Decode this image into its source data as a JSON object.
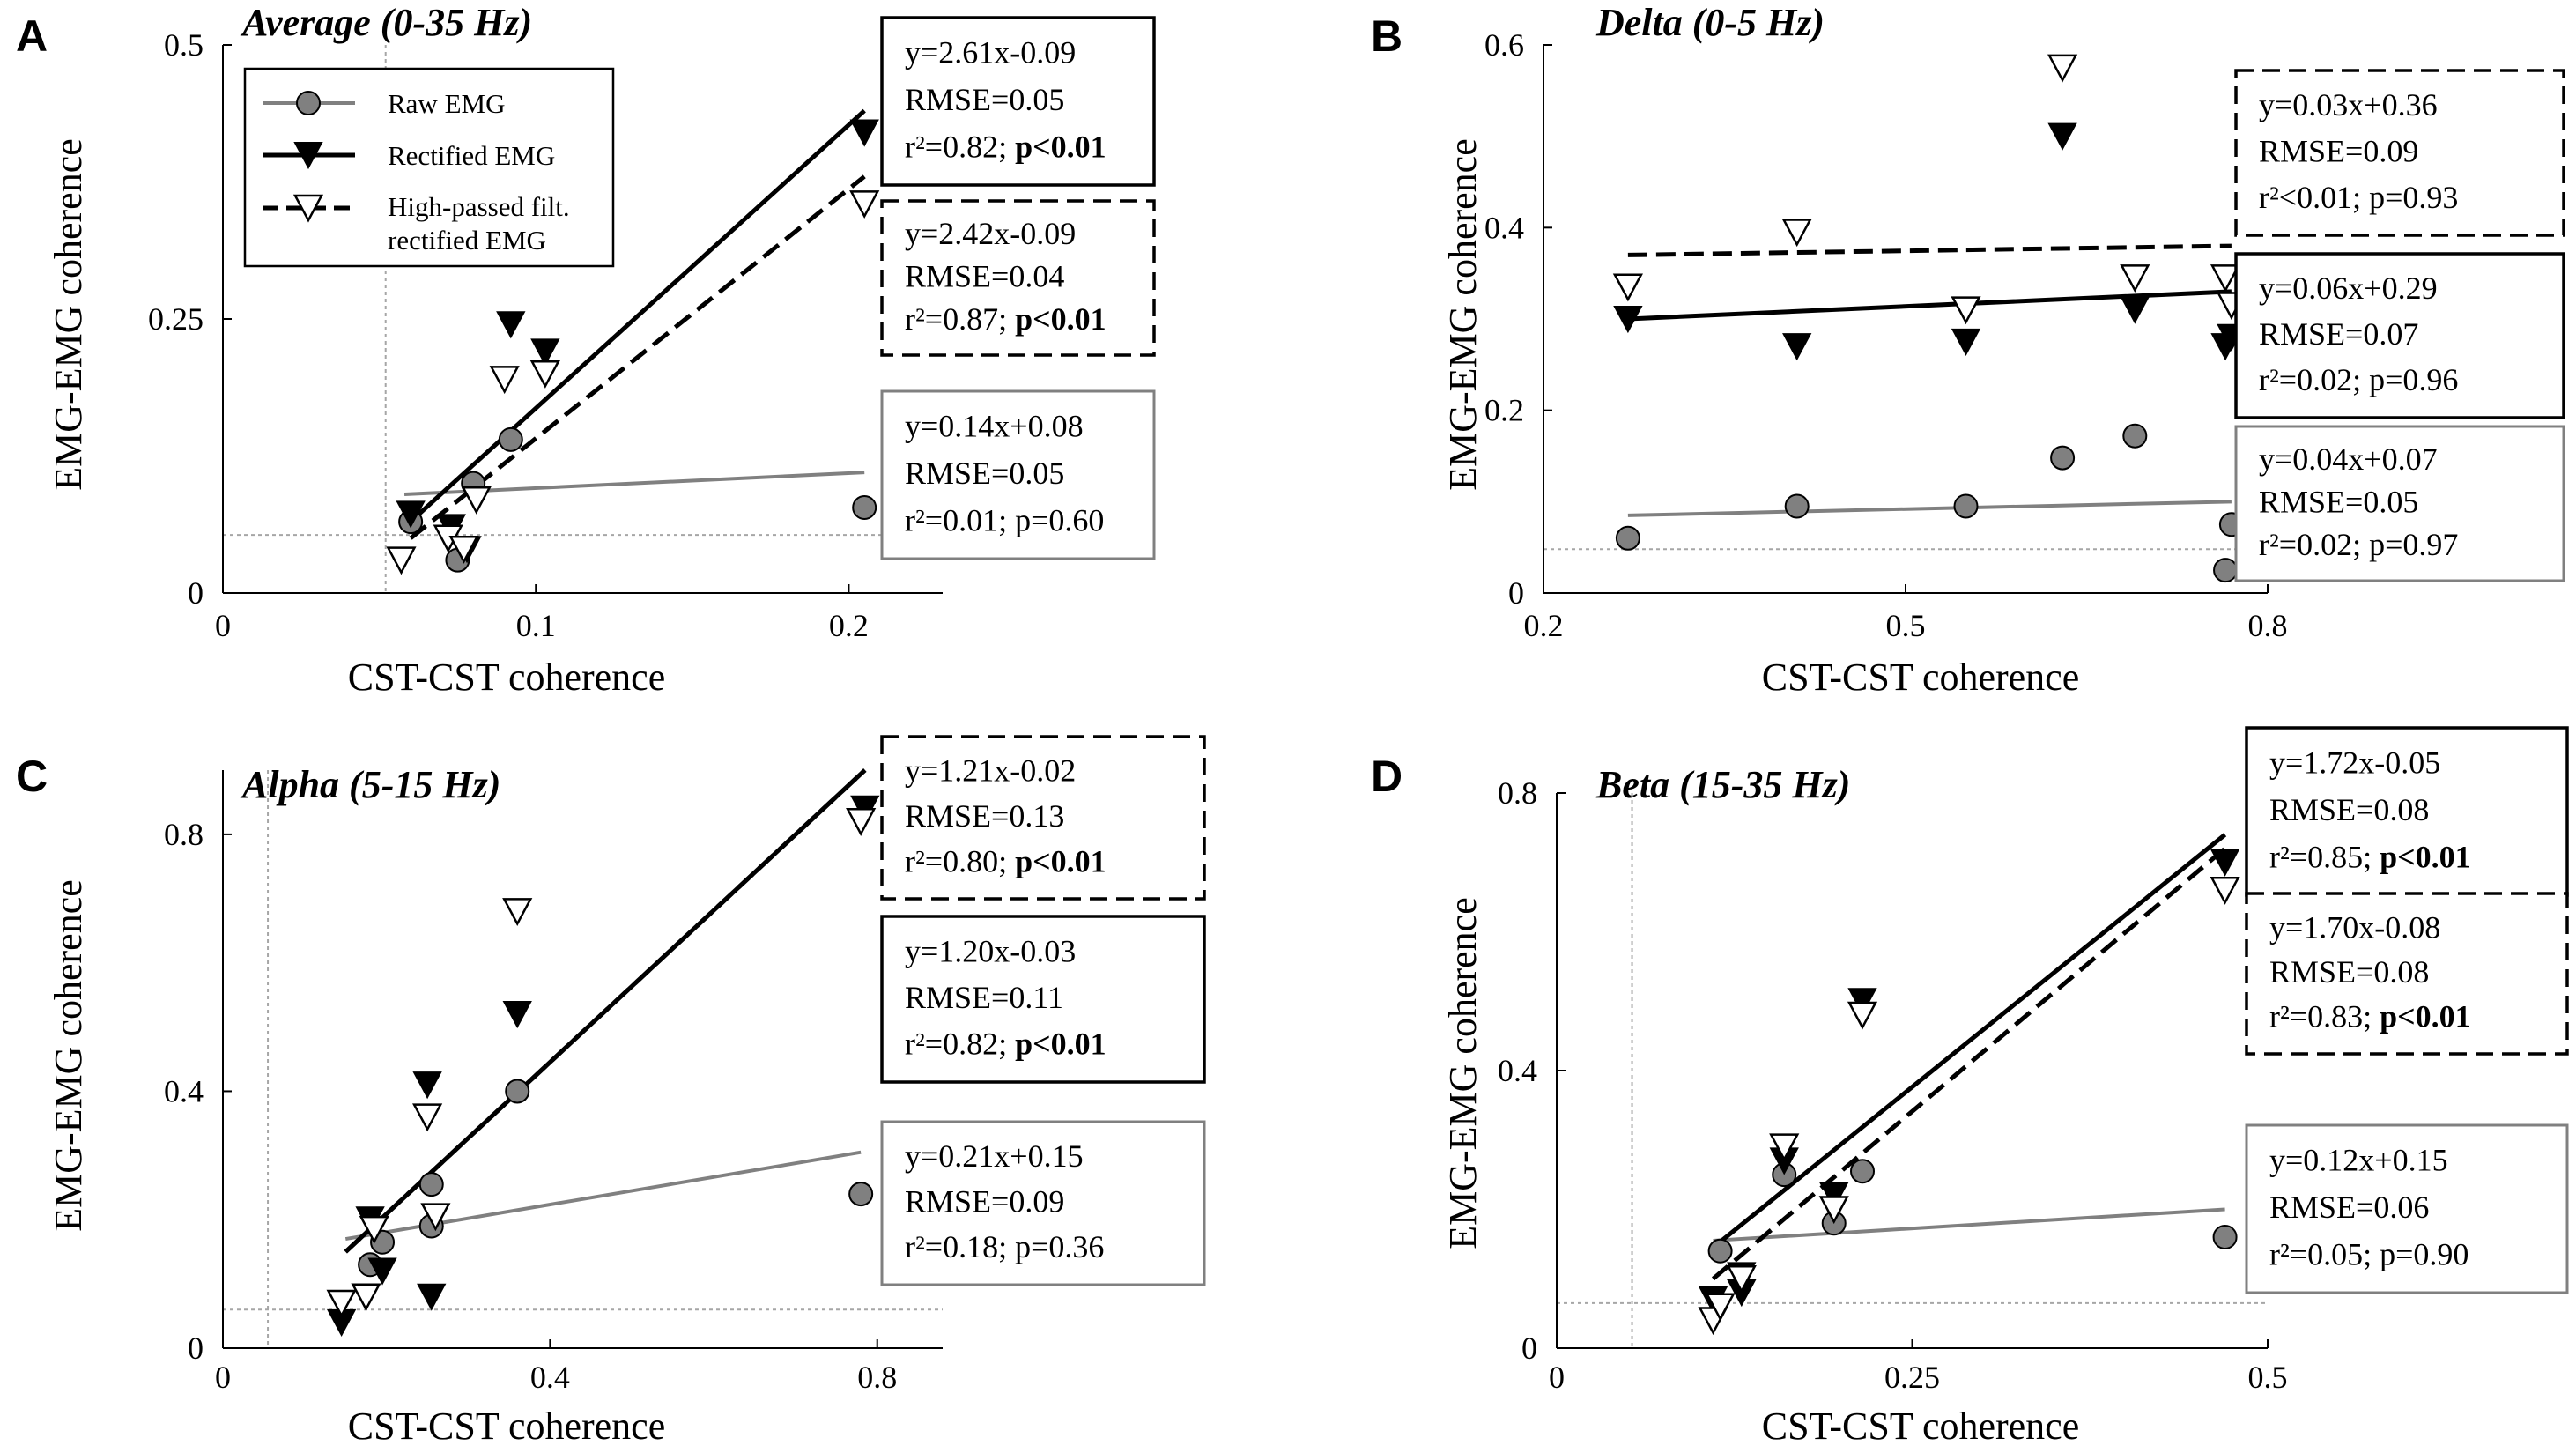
{
  "legend": {
    "raw": "Raw EMG",
    "rect": "Rectified EMG",
    "hp_line1": "High-passed filt.",
    "hp_line2": "rectified EMG"
  },
  "colors": {
    "raw": "#808080",
    "rect": "#000000",
    "hp": "#000000",
    "grid": "#a6a6a6"
  },
  "chart_data": [
    {
      "type": "scatter",
      "panel": "A",
      "title": "Average (0-35 Hz)",
      "xlabel": "CST-CST coherence",
      "ylabel": "EMG-EMG coherence",
      "xlim": [
        0,
        0.23
      ],
      "ylim": [
        0,
        0.5
      ],
      "xticks": [
        {
          "v": 0,
          "label": "0"
        },
        {
          "v": 0.1,
          "label": "0.1"
        },
        {
          "v": 0.2,
          "label": "0.2"
        }
      ],
      "yticks": [
        {
          "v": 0,
          "label": "0"
        },
        {
          "v": 0.25,
          "label": "0.25"
        },
        {
          "v": 0.5,
          "label": "0.5"
        }
      ],
      "chance": {
        "x": 0.052,
        "y": 0.053
      },
      "series": [
        {
          "key": "raw",
          "name": "Raw EMG",
          "marker": "circle",
          "points": [
            [
              0.06,
              0.065
            ],
            [
              0.075,
              0.03
            ],
            [
              0.08,
              0.1
            ],
            [
              0.092,
              0.14
            ],
            [
              0.205,
              0.078
            ]
          ],
          "fit": {
            "x": [
              0.058,
              0.205
            ],
            "y": [
              0.09,
              0.11
            ]
          }
        },
        {
          "key": "rect",
          "name": "Rectified EMG",
          "marker": "tri-down-filled",
          "points": [
            [
              0.06,
              0.072
            ],
            [
              0.073,
              0.06
            ],
            [
              0.078,
              0.04
            ],
            [
              0.092,
              0.245
            ],
            [
              0.103,
              0.22
            ],
            [
              0.205,
              0.42
            ]
          ],
          "fit": {
            "x": [
              0.058,
              0.205
            ],
            "y": [
              0.06,
              0.44
            ]
          }
        },
        {
          "key": "hp",
          "name": "High-passed filt. rectified EMG",
          "marker": "tri-down-open",
          "points": [
            [
              0.057,
              0.03
            ],
            [
              0.072,
              0.05
            ],
            [
              0.077,
              0.04
            ],
            [
              0.081,
              0.085
            ],
            [
              0.09,
              0.195
            ],
            [
              0.103,
              0.2
            ],
            [
              0.205,
              0.355
            ]
          ],
          "fit": {
            "x": [
              0.06,
              0.205
            ],
            "y": [
              0.05,
              0.38
            ]
          }
        }
      ],
      "boxes": [
        {
          "series": "rect",
          "style": "solid",
          "lines": [
            "y=2.61x-0.09",
            "RMSE=0.05",
            "r²=0.82; ",
            "p<0.01"
          ]
        },
        {
          "series": "hp",
          "style": "dashed",
          "lines": [
            "y=2.42x-0.09",
            "RMSE=0.04",
            "r²=0.87; ",
            "p<0.01"
          ]
        },
        {
          "series": "raw",
          "style": "gray",
          "lines": [
            "y=0.14x+0.08",
            "RMSE=0.05",
            "r²=0.01; p=0.60",
            ""
          ]
        }
      ]
    },
    {
      "type": "scatter",
      "panel": "B",
      "title": "Delta (0-5 Hz)",
      "xlabel": "CST-CST coherence",
      "ylabel": "EMG-EMG coherence",
      "xlim": [
        0.2,
        0.8
      ],
      "ylim": [
        0,
        0.6
      ],
      "xticks": [
        {
          "v": 0.2,
          "label": "0.2"
        },
        {
          "v": 0.5,
          "label": "0.5"
        },
        {
          "v": 0.8,
          "label": "0.8"
        }
      ],
      "yticks": [
        {
          "v": 0,
          "label": "0"
        },
        {
          "v": 0.2,
          "label": "0.2"
        },
        {
          "v": 0.4,
          "label": "0.4"
        },
        {
          "v": 0.6,
          "label": "0.6"
        }
      ],
      "chance": {
        "x": null,
        "y": 0.048
      },
      "series": [
        {
          "key": "raw",
          "name": "Raw EMG",
          "marker": "circle",
          "points": [
            [
              0.27,
              0.06
            ],
            [
              0.41,
              0.095
            ],
            [
              0.55,
              0.095
            ],
            [
              0.63,
              0.148
            ],
            [
              0.69,
              0.172
            ],
            [
              0.765,
              0.025
            ],
            [
              0.77,
              0.075
            ]
          ],
          "fit": {
            "x": [
              0.27,
              0.77
            ],
            "y": [
              0.085,
              0.1
            ]
          }
        },
        {
          "key": "rect",
          "name": "Rectified EMG",
          "marker": "tri-down-filled",
          "points": [
            [
              0.27,
              0.3
            ],
            [
              0.41,
              0.27
            ],
            [
              0.55,
              0.275
            ],
            [
              0.63,
              0.5
            ],
            [
              0.69,
              0.31
            ],
            [
              0.765,
              0.27
            ],
            [
              0.77,
              0.28
            ]
          ],
          "fit": {
            "x": [
              0.27,
              0.77
            ],
            "y": [
              0.3,
              0.33
            ]
          }
        },
        {
          "key": "hp",
          "name": "High-passed filt. rectified EMG",
          "marker": "tri-down-open",
          "points": [
            [
              0.27,
              0.335
            ],
            [
              0.41,
              0.395
            ],
            [
              0.55,
              0.31
            ],
            [
              0.63,
              0.575
            ],
            [
              0.69,
              0.345
            ],
            [
              0.765,
              0.345
            ],
            [
              0.77,
              0.315
            ]
          ],
          "fit": {
            "x": [
              0.27,
              0.77
            ],
            "y": [
              0.37,
              0.38
            ]
          }
        }
      ],
      "boxes": [
        {
          "series": "hp",
          "style": "dashed",
          "lines": [
            "y=0.03x+0.36",
            "RMSE=0.09",
            "r²<0.01; p=0.93",
            ""
          ]
        },
        {
          "series": "rect",
          "style": "solid",
          "lines": [
            "y=0.06x+0.29",
            "RMSE=0.07",
            "r²=0.02; p=0.96",
            ""
          ]
        },
        {
          "series": "raw",
          "style": "gray",
          "lines": [
            "y=0.04x+0.07",
            "RMSE=0.05",
            "r²=0.02; p=0.97",
            ""
          ]
        }
      ]
    },
    {
      "type": "scatter",
      "panel": "C",
      "title": "Alpha (5-15 Hz)",
      "xlabel": "CST-CST coherence",
      "ylabel": "EMG-EMG coherence",
      "xlim": [
        0,
        0.88
      ],
      "ylim": [
        0,
        0.9
      ],
      "xticks": [
        {
          "v": 0,
          "label": "0"
        },
        {
          "v": 0.4,
          "label": "0.4"
        },
        {
          "v": 0.8,
          "label": "0.8"
        }
      ],
      "yticks": [
        {
          "v": 0,
          "label": "0"
        },
        {
          "v": 0.4,
          "label": "0.4"
        },
        {
          "v": 0.8,
          "label": "0.8"
        }
      ],
      "chance": {
        "x": 0.055,
        "y": 0.06
      },
      "series": [
        {
          "key": "raw",
          "name": "Raw EMG",
          "marker": "circle",
          "points": [
            [
              0.18,
              0.13
            ],
            [
              0.195,
              0.165
            ],
            [
              0.255,
              0.255
            ],
            [
              0.255,
              0.19
            ],
            [
              0.36,
              0.4
            ],
            [
              0.78,
              0.24
            ]
          ],
          "fit": {
            "x": [
              0.15,
              0.78
            ],
            "y": [
              0.17,
              0.305
            ]
          }
        },
        {
          "key": "rect",
          "name": "Rectified EMG",
          "marker": "tri-down-filled",
          "points": [
            [
              0.145,
              0.04
            ],
            [
              0.18,
              0.2
            ],
            [
              0.195,
              0.12
            ],
            [
              0.25,
              0.41
            ],
            [
              0.255,
              0.08
            ],
            [
              0.36,
              0.52
            ],
            [
              0.785,
              0.84
            ]
          ],
          "fit": {
            "x": [
              0.15,
              0.785
            ],
            "y": [
              0.15,
              0.9
            ]
          }
        },
        {
          "key": "hp",
          "name": "High-passed filt. rectified EMG",
          "marker": "tri-down-open",
          "points": [
            [
              0.145,
              0.07
            ],
            [
              0.175,
              0.08
            ],
            [
              0.185,
              0.185
            ],
            [
              0.25,
              0.36
            ],
            [
              0.26,
              0.205
            ],
            [
              0.36,
              0.68
            ],
            [
              0.78,
              0.82
            ]
          ],
          "fit": {
            "x": [
              0.15,
              0.785
            ],
            "y": [
              0.15,
              0.9
            ]
          }
        }
      ],
      "boxes": [
        {
          "series": "hp",
          "style": "dashed",
          "lines": [
            "y=1.21x-0.02",
            "RMSE=0.13",
            "r²=0.80; ",
            "p<0.01"
          ]
        },
        {
          "series": "rect",
          "style": "solid",
          "lines": [
            "y=1.20x-0.03",
            "RMSE=0.11",
            "r²=0.82; ",
            "p<0.01"
          ]
        },
        {
          "series": "raw",
          "style": "gray",
          "lines": [
            "y=0.21x+0.15",
            "RMSE=0.09",
            "r²=0.18; p=0.36",
            ""
          ]
        }
      ]
    },
    {
      "type": "scatter",
      "panel": "D",
      "title": "Beta (15-35 Hz)",
      "xlabel": "CST-CST coherence",
      "ylabel": "EMG-EMG coherence",
      "xlim": [
        0,
        0.5
      ],
      "ylim": [
        0,
        0.8
      ],
      "xticks": [
        {
          "v": 0,
          "label": "0"
        },
        {
          "v": 0.25,
          "label": "0.25"
        },
        {
          "v": 0.5,
          "label": "0.5"
        }
      ],
      "yticks": [
        {
          "v": 0,
          "label": "0"
        },
        {
          "v": 0.4,
          "label": "0.4"
        },
        {
          "v": 0.8,
          "label": "0.8"
        }
      ],
      "chance": {
        "x": 0.053,
        "y": 0.065
      },
      "series": [
        {
          "key": "raw",
          "name": "Raw EMG",
          "marker": "circle",
          "points": [
            [
              0.115,
              0.14
            ],
            [
              0.16,
              0.25
            ],
            [
              0.195,
              0.18
            ],
            [
              0.215,
              0.255
            ],
            [
              0.47,
              0.16
            ]
          ],
          "fit": {
            "x": [
              0.11,
              0.47
            ],
            "y": [
              0.155,
              0.2
            ]
          }
        },
        {
          "key": "rect",
          "name": "Rectified EMG",
          "marker": "tri-down-filled",
          "points": [
            [
              0.11,
              0.07
            ],
            [
              0.13,
              0.08
            ],
            [
              0.13,
              0.105
            ],
            [
              0.16,
              0.27
            ],
            [
              0.195,
              0.22
            ],
            [
              0.215,
              0.5
            ],
            [
              0.47,
              0.7
            ]
          ],
          "fit": {
            "x": [
              0.11,
              0.47
            ],
            "y": [
              0.145,
              0.74
            ]
          }
        },
        {
          "key": "hp",
          "name": "High-passed filt. rectified EMG",
          "marker": "tri-down-open",
          "points": [
            [
              0.11,
              0.04
            ],
            [
              0.115,
              0.06
            ],
            [
              0.13,
              0.1
            ],
            [
              0.16,
              0.29
            ],
            [
              0.195,
              0.2
            ],
            [
              0.215,
              0.48
            ],
            [
              0.47,
              0.66
            ]
          ],
          "fit": {
            "x": [
              0.11,
              0.47
            ],
            "y": [
              0.1,
              0.72
            ]
          }
        }
      ],
      "boxes": [
        {
          "series": "rect",
          "style": "solid",
          "lines": [
            "y=1.72x-0.05",
            "RMSE=0.08",
            "r²=0.85; ",
            "p<0.01"
          ]
        },
        {
          "series": "hp",
          "style": "dashed",
          "lines": [
            "y=1.70x-0.08",
            "RMSE=0.08",
            "r²=0.83; ",
            "p<0.01"
          ]
        },
        {
          "series": "raw",
          "style": "gray",
          "lines": [
            "y=0.12x+0.15",
            "RMSE=0.06",
            "r²=0.05; p=0.90",
            ""
          ]
        }
      ]
    }
  ]
}
